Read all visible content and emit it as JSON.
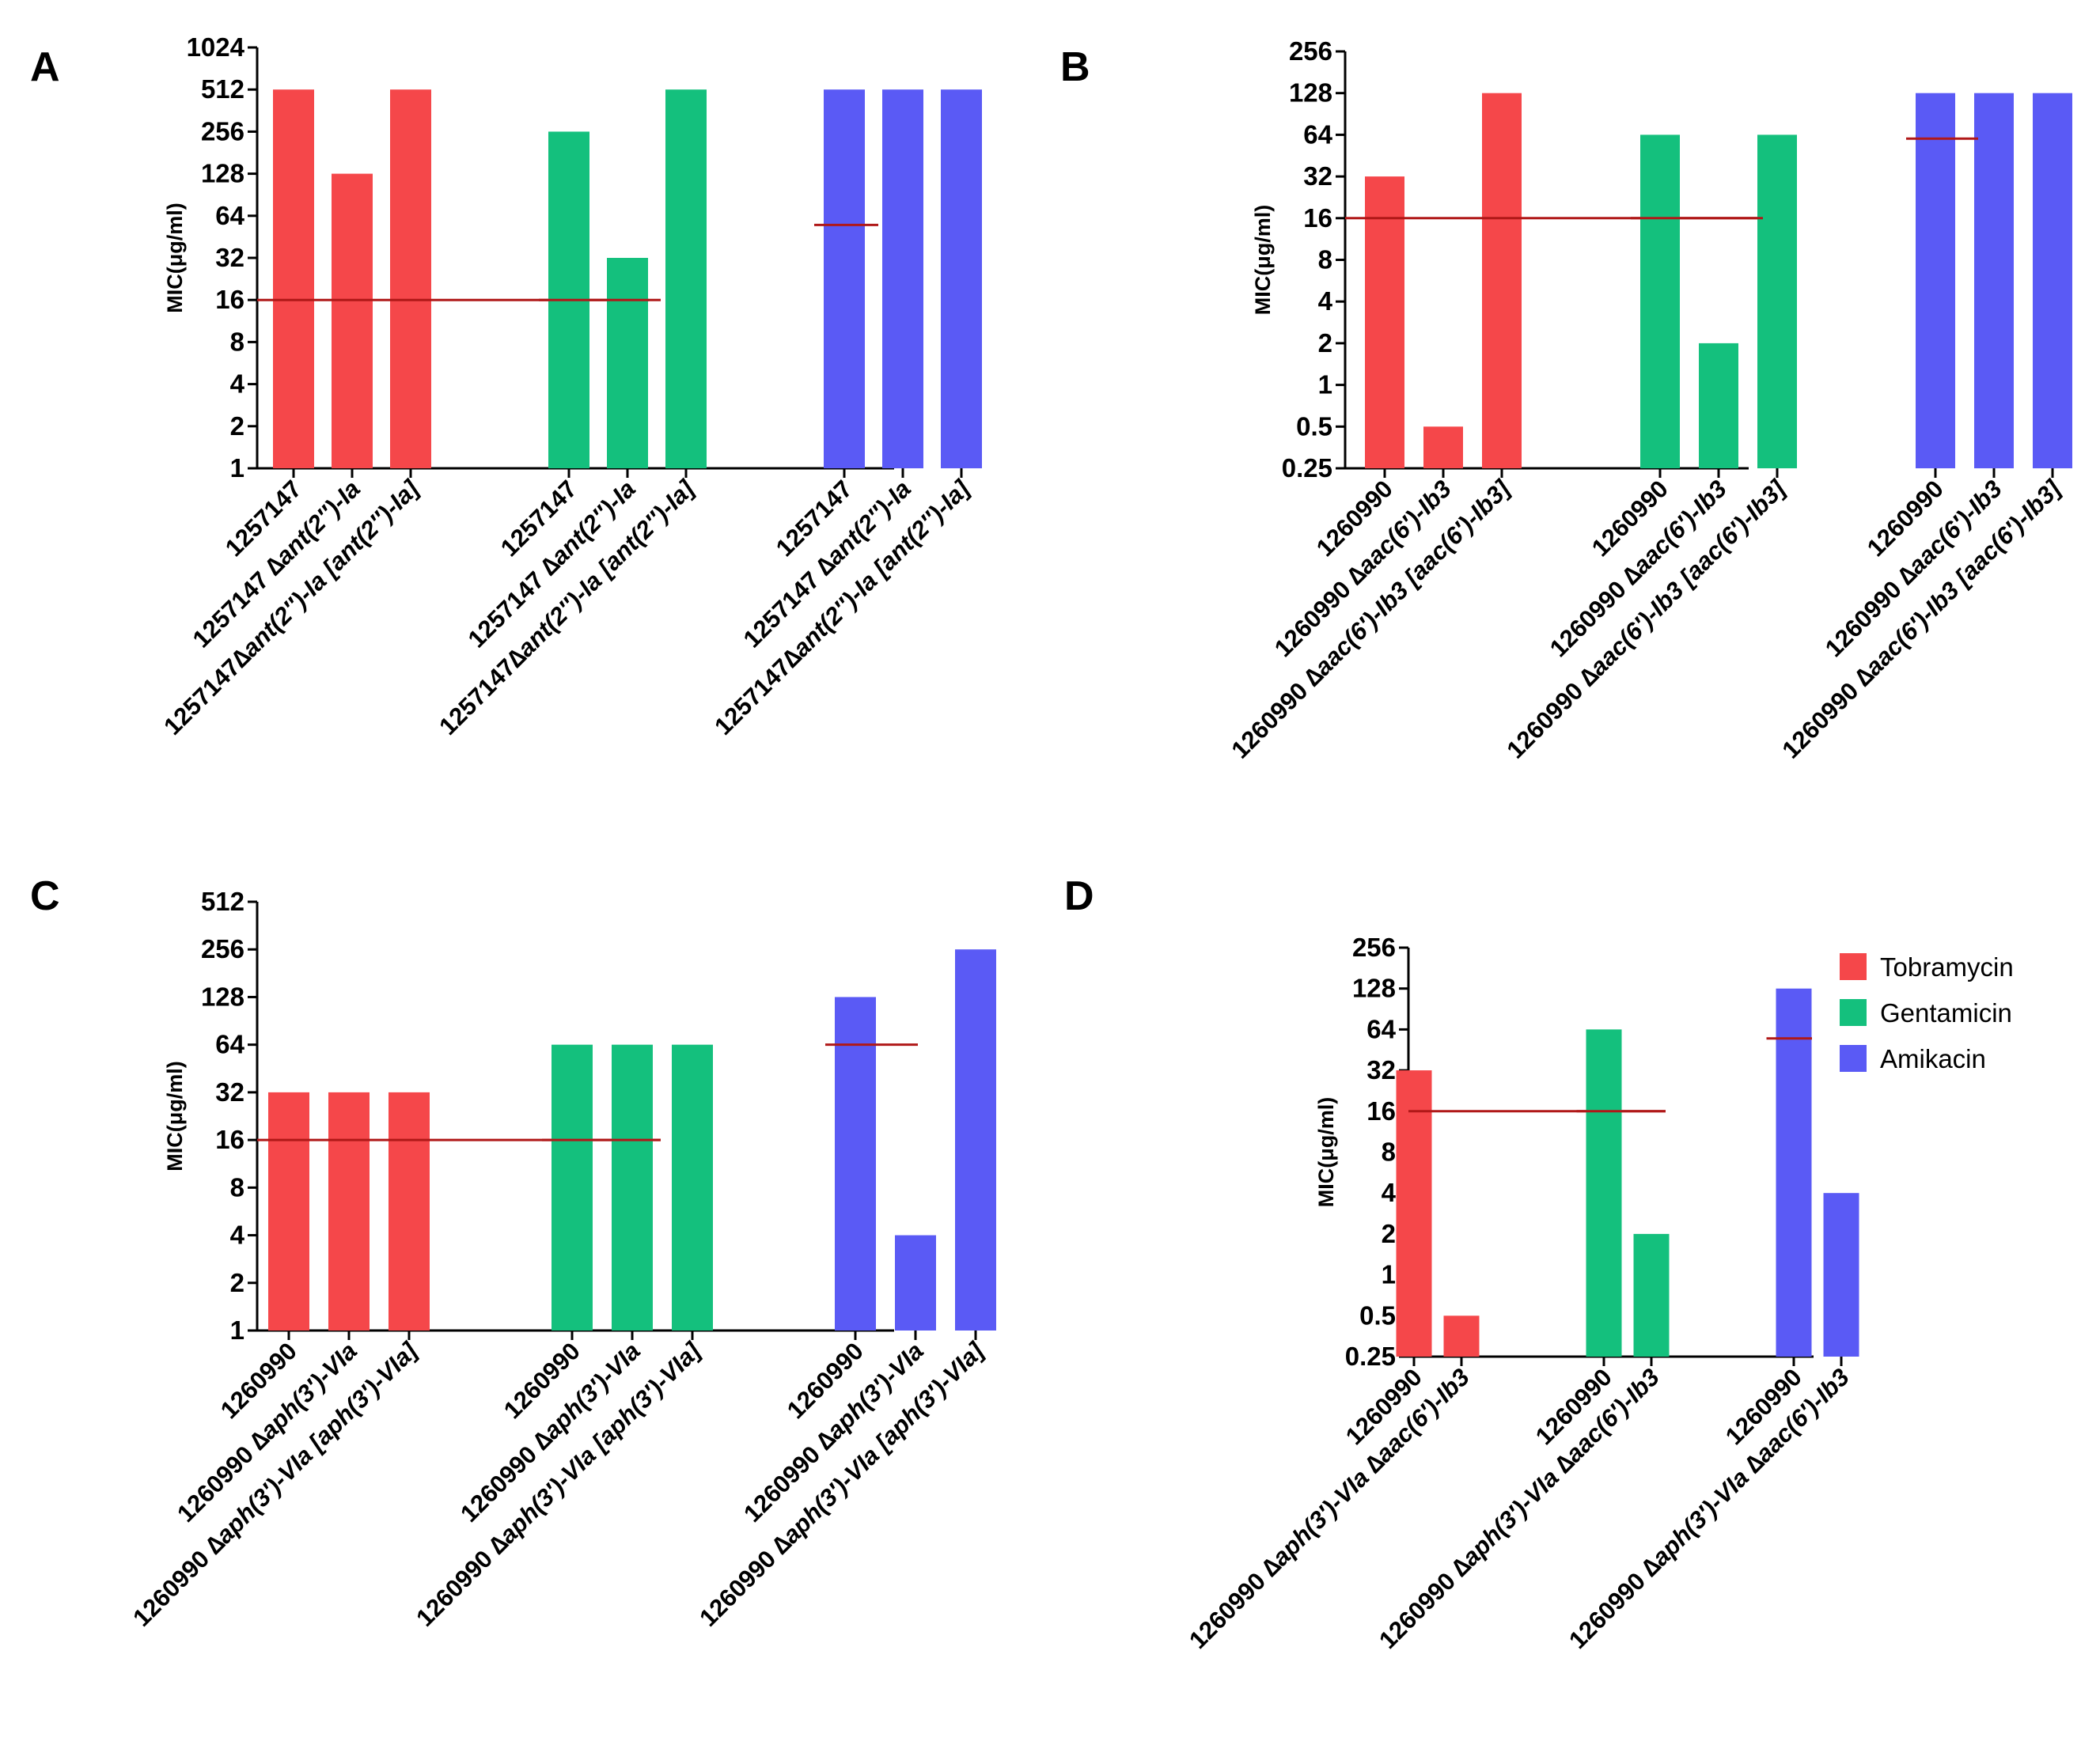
{
  "legend": {
    "items": [
      {
        "label": "Tobramycin",
        "color": "#f5474a"
      },
      {
        "label": "Gentamicin",
        "color": "#14c07d"
      },
      {
        "label": "Amikacin",
        "color": "#5a5af5"
      }
    ]
  },
  "chart_data": [
    {
      "type": "bar",
      "panel": "A",
      "ylabel": "MIC(μg/ml)",
      "yscale": "log2",
      "ylim": [
        1,
        1024
      ],
      "yticks": [
        "1",
        "2",
        "4",
        "8",
        "16",
        "32",
        "64",
        "128",
        "256",
        "512",
        "1024"
      ],
      "categories": [
        [
          {
            "t": "1257147",
            "i": false
          }
        ],
        [
          {
            "t": "1257147 ∆",
            "i": false
          },
          {
            "t": "ant(2″)-Ia",
            "i": true
          }
        ],
        [
          {
            "t": "1257147∆",
            "i": false
          },
          {
            "t": "ant(2″)-Ia [ant(2″)-Ia]",
            "i": true
          }
        ]
      ],
      "series": [
        {
          "name": "Tobramycin",
          "values": [
            512,
            128,
            512
          ],
          "breakpoint": 16
        },
        {
          "name": "Gentamicin",
          "values": [
            256,
            32,
            512
          ],
          "breakpoint": 16
        },
        {
          "name": "Amikacin",
          "values": [
            512,
            512,
            512
          ],
          "breakpoint": 55
        }
      ]
    },
    {
      "type": "bar",
      "panel": "B",
      "ylabel": "MIC(μg/ml)",
      "yscale": "log2",
      "ylim": [
        0.25,
        256
      ],
      "yticks": [
        "0.25",
        "0.5",
        "1",
        "2",
        "4",
        "8",
        "16",
        "32",
        "64",
        "128",
        "256"
      ],
      "categories": [
        [
          {
            "t": "1260990",
            "i": false
          }
        ],
        [
          {
            "t": "1260990 ∆",
            "i": false
          },
          {
            "t": "aac(6′)-Ib3",
            "i": true
          }
        ],
        [
          {
            "t": "1260990 ∆",
            "i": false
          },
          {
            "t": "aac(6′)-Ib3 [aac(6′)-Ib3]",
            "i": true
          }
        ]
      ],
      "series": [
        {
          "name": "Tobramycin",
          "values": [
            32,
            0.5,
            128
          ],
          "breakpoint": 16
        },
        {
          "name": "Gentamicin",
          "values": [
            64,
            2,
            64
          ],
          "breakpoint": 16
        },
        {
          "name": "Amikacin",
          "values": [
            128,
            128,
            128
          ],
          "breakpoint": 60
        }
      ]
    },
    {
      "type": "bar",
      "panel": "C",
      "ylabel": "MIC(μg/ml)",
      "yscale": "log2",
      "ylim": [
        1,
        512
      ],
      "yticks": [
        "1",
        "2",
        "4",
        "8",
        "16",
        "32",
        "64",
        "128",
        "256",
        "512"
      ],
      "categories": [
        [
          {
            "t": "1260990",
            "i": false
          }
        ],
        [
          {
            "t": "1260990 ∆",
            "i": false
          },
          {
            "t": "aph(3′)-VIa",
            "i": true
          }
        ],
        [
          {
            "t": "1260990 ∆",
            "i": false
          },
          {
            "t": "aph(3′)-VIa [aph(3′)-VIa]",
            "i": true
          }
        ]
      ],
      "series": [
        {
          "name": "Tobramycin",
          "values": [
            32,
            32,
            32
          ],
          "breakpoint": 16
        },
        {
          "name": "Gentamicin",
          "values": [
            64,
            64,
            64
          ],
          "breakpoint": 16
        },
        {
          "name": "Amikacin",
          "values": [
            128,
            4,
            256
          ],
          "breakpoint": 64
        }
      ]
    },
    {
      "type": "bar",
      "panel": "D",
      "ylabel": "MIC(μg/ml)",
      "yscale": "log2",
      "ylim": [
        0.25,
        256
      ],
      "yticks": [
        "0.25",
        "0.5",
        "1",
        "2",
        "4",
        "8",
        "16",
        "32",
        "64",
        "128",
        "256"
      ],
      "categories": [
        [
          {
            "t": "1260990",
            "i": false
          }
        ],
        [
          {
            "t": "1260990 ∆",
            "i": false
          },
          {
            "t": "aph(3′)-VIa",
            "i": true
          },
          {
            "t": " ∆",
            "i": false
          },
          {
            "t": "aac(6′)-Ib3",
            "i": true
          }
        ]
      ],
      "series": [
        {
          "name": "Tobramycin",
          "values": [
            32,
            0.5
          ],
          "breakpoint": 16
        },
        {
          "name": "Gentamicin",
          "values": [
            64,
            2
          ],
          "breakpoint": 16
        },
        {
          "name": "Amikacin",
          "values": [
            128,
            4
          ],
          "breakpoint": 55
        }
      ]
    }
  ]
}
